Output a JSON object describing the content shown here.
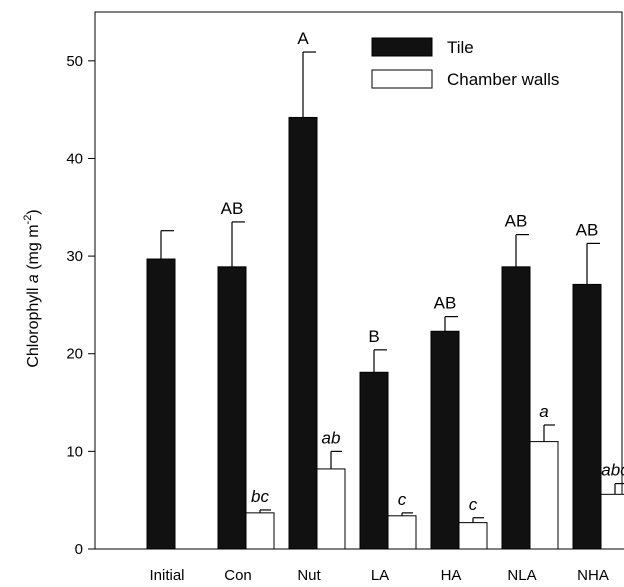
{
  "chart_data": {
    "type": "bar",
    "categories": [
      "Initial",
      "Con",
      "Nut",
      "LA",
      "HA",
      "NLA",
      "NHA"
    ],
    "ylabel": "Chlorophyll a (mg m-2)",
    "ylim": [
      0,
      55
    ],
    "yticks": [
      0,
      10,
      20,
      30,
      40,
      50
    ],
    "grid": false,
    "legend_position": "top-right",
    "series": [
      {
        "name": "Tile",
        "color": "#111111",
        "values": [
          29.7,
          28.9,
          44.2,
          18.1,
          22.3,
          28.9,
          27.1
        ],
        "errors": [
          2.9,
          4.6,
          6.7,
          2.3,
          1.5,
          3.3,
          4.2
        ],
        "labels": [
          "",
          "AB",
          "A",
          "B",
          "AB",
          "AB",
          "AB"
        ]
      },
      {
        "name": "Chamber walls",
        "color": "#ffffff",
        "values": [
          null,
          3.7,
          8.2,
          3.4,
          2.7,
          11.0,
          5.6
        ],
        "errors": [
          null,
          0.3,
          1.8,
          0.3,
          0.5,
          1.7,
          1.1
        ],
        "labels": [
          "",
          "bc",
          "ab",
          "c",
          "c",
          "a",
          "abc"
        ]
      }
    ]
  }
}
